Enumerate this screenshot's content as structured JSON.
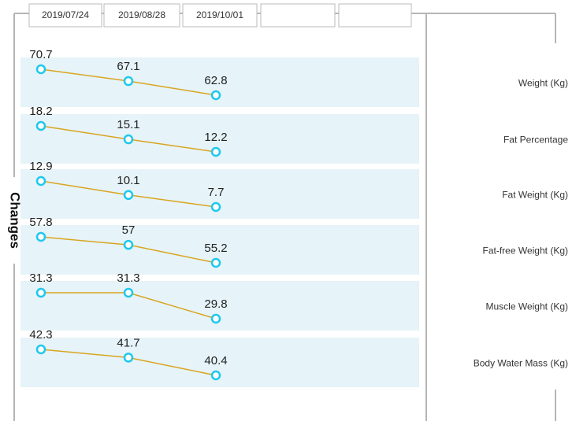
{
  "dates": [
    "2019/07/24",
    "2019/08/28",
    "2019/10/01"
  ],
  "side_label": "Changes",
  "rows": [
    {
      "label": "Weight (Kg)",
      "values": [
        70.7,
        67.1,
        62.8
      ]
    },
    {
      "label": "Fat Percentage",
      "values": [
        18.2,
        15.1,
        12.2
      ]
    },
    {
      "label": "Fat Weight (Kg)",
      "values": [
        12.9,
        10.1,
        7.7
      ]
    },
    {
      "label": "Fat-free Weight (Kg)",
      "values": [
        57.8,
        57,
        55.2
      ]
    },
    {
      "label": "Muscle Weight (Kg)",
      "values": [
        31.3,
        31.3,
        29.8
      ]
    },
    {
      "label": "Body Water Mass (Kg)",
      "values": [
        42.3,
        41.7,
        40.4
      ]
    }
  ]
}
